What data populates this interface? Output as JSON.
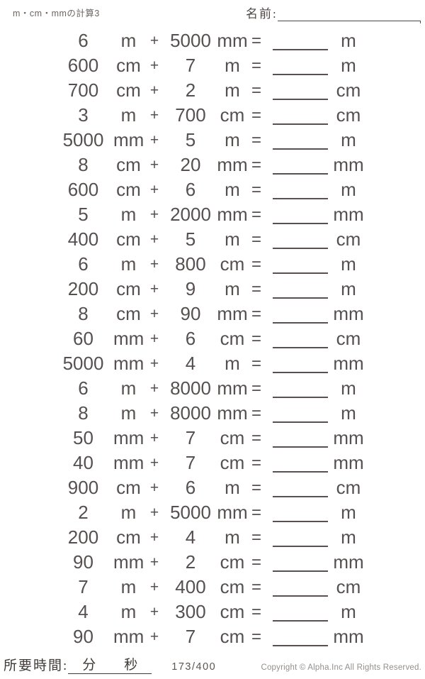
{
  "page": {
    "title": "m・cm・mmの計算3",
    "name_label": "名前:"
  },
  "symbols": {
    "plus": "+",
    "equals": "="
  },
  "problems": [
    {
      "n1": "6",
      "u1": "m",
      "n2": "5000",
      "u2": "mm",
      "au": "m"
    },
    {
      "n1": "600",
      "u1": "cm",
      "n2": "7",
      "u2": "m",
      "au": "m"
    },
    {
      "n1": "700",
      "u1": "cm",
      "n2": "2",
      "u2": "m",
      "au": "cm"
    },
    {
      "n1": "3",
      "u1": "m",
      "n2": "700",
      "u2": "cm",
      "au": "cm"
    },
    {
      "n1": "5000",
      "u1": "mm",
      "n2": "5",
      "u2": "m",
      "au": "m"
    },
    {
      "n1": "8",
      "u1": "cm",
      "n2": "20",
      "u2": "mm",
      "au": "mm"
    },
    {
      "n1": "600",
      "u1": "cm",
      "n2": "6",
      "u2": "m",
      "au": "m"
    },
    {
      "n1": "5",
      "u1": "m",
      "n2": "2000",
      "u2": "mm",
      "au": "mm"
    },
    {
      "n1": "400",
      "u1": "cm",
      "n2": "5",
      "u2": "m",
      "au": "cm"
    },
    {
      "n1": "6",
      "u1": "m",
      "n2": "800",
      "u2": "cm",
      "au": "m"
    },
    {
      "n1": "200",
      "u1": "cm",
      "n2": "9",
      "u2": "m",
      "au": "m"
    },
    {
      "n1": "8",
      "u1": "cm",
      "n2": "90",
      "u2": "mm",
      "au": "mm"
    },
    {
      "n1": "60",
      "u1": "mm",
      "n2": "6",
      "u2": "cm",
      "au": "cm"
    },
    {
      "n1": "5000",
      "u1": "mm",
      "n2": "4",
      "u2": "m",
      "au": "mm"
    },
    {
      "n1": "6",
      "u1": "m",
      "n2": "8000",
      "u2": "mm",
      "au": "m"
    },
    {
      "n1": "8",
      "u1": "m",
      "n2": "8000",
      "u2": "mm",
      "au": "m"
    },
    {
      "n1": "50",
      "u1": "mm",
      "n2": "7",
      "u2": "cm",
      "au": "mm"
    },
    {
      "n1": "40",
      "u1": "mm",
      "n2": "7",
      "u2": "cm",
      "au": "mm"
    },
    {
      "n1": "900",
      "u1": "cm",
      "n2": "6",
      "u2": "m",
      "au": "cm"
    },
    {
      "n1": "2",
      "u1": "m",
      "n2": "5000",
      "u2": "mm",
      "au": "m"
    },
    {
      "n1": "200",
      "u1": "cm",
      "n2": "4",
      "u2": "m",
      "au": "m"
    },
    {
      "n1": "90",
      "u1": "mm",
      "n2": "2",
      "u2": "cm",
      "au": "mm"
    },
    {
      "n1": "7",
      "u1": "m",
      "n2": "400",
      "u2": "cm",
      "au": "cm"
    },
    {
      "n1": "4",
      "u1": "m",
      "n2": "300",
      "u2": "cm",
      "au": "m"
    },
    {
      "n1": "90",
      "u1": "mm",
      "n2": "7",
      "u2": "cm",
      "au": "mm"
    }
  ],
  "footer": {
    "time_label": "所要時間:",
    "minutes_label": "分",
    "seconds_label": "秒",
    "page_number": "173/400",
    "copyright": "Copyright © Alpha.Inc All Rights Reserved."
  },
  "colors": {
    "text": "#565050",
    "answer_line": "#575150",
    "footer_text": "#3f3a37",
    "copyright_text": "#938f8c"
  }
}
